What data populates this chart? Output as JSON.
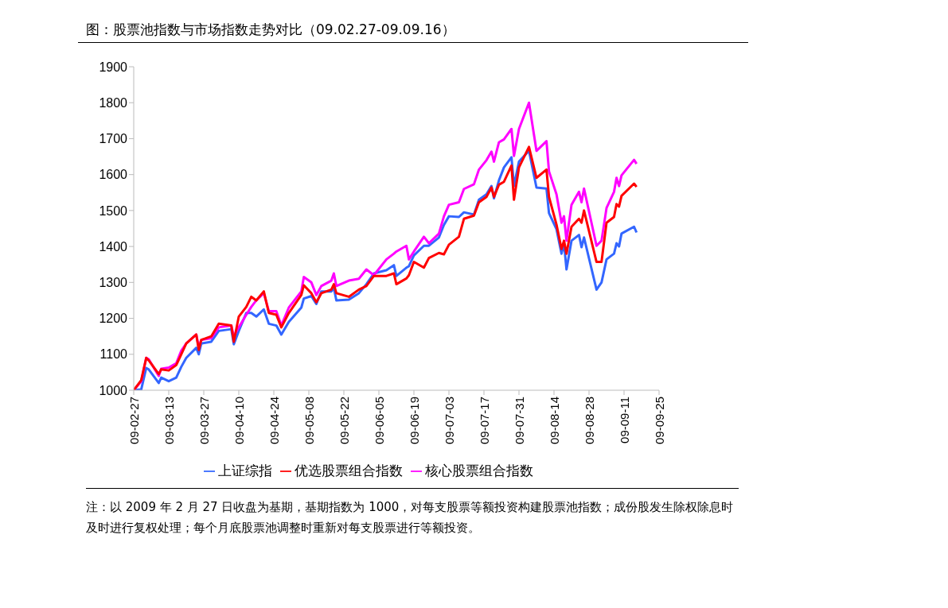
{
  "chart_data": {
    "type": "line",
    "title": "图：股票池指数与市场指数走势对比（09.02.27-09.09.16）",
    "annotations": [
      "注：以 2009 年 2 月 27 日收盘为基期，基期指数为 1000，对每支股票等额投资构建股票池指数；成份股发生除权除息时及时进行复权处理；每个月底股票池调整时重新对每支股票进行等额投资。"
    ],
    "x": [
      "2009-02-27",
      "2009-03-02",
      "2009-03-04",
      "2009-03-05",
      "2009-03-09",
      "2009-03-10",
      "2009-03-13",
      "2009-03-16",
      "2009-03-18",
      "2009-03-20",
      "2009-03-24",
      "2009-03-25",
      "2009-03-26",
      "2009-03-30",
      "2009-04-02",
      "2009-04-07",
      "2009-04-08",
      "2009-04-10",
      "2009-04-13",
      "2009-04-15",
      "2009-04-17",
      "2009-04-20",
      "2009-04-22",
      "2009-04-25",
      "2009-04-27",
      "2009-04-30",
      "2009-05-05",
      "2009-05-06",
      "2009-05-09",
      "2009-05-11",
      "2009-05-13",
      "2009-05-17",
      "2009-05-18",
      "2009-05-19",
      "2009-05-24",
      "2009-05-28",
      "2009-05-31",
      "2009-06-03",
      "2009-06-08",
      "2009-06-11",
      "2009-06-12",
      "2009-06-16",
      "2009-06-17",
      "2009-06-19",
      "2009-06-23",
      "2009-06-25",
      "2009-06-29",
      "2009-07-01",
      "2009-07-03",
      "2009-07-07",
      "2009-07-09",
      "2009-07-13",
      "2009-07-15",
      "2009-07-18",
      "2009-07-20",
      "2009-07-21",
      "2009-07-23",
      "2009-07-25",
      "2009-07-28",
      "2009-07-29",
      "2009-07-31",
      "2009-08-04",
      "2009-08-07",
      "2009-08-11",
      "2009-08-12",
      "2009-08-15",
      "2009-08-17",
      "2009-08-18",
      "2009-08-19",
      "2009-08-21",
      "2009-08-24",
      "2009-08-25",
      "2009-08-26",
      "2009-08-31",
      "2009-09-02",
      "2009-09-04",
      "2009-09-07",
      "2009-09-08",
      "2009-09-09",
      "2009-09-10",
      "2009-09-15",
      "2009-09-16"
    ],
    "series": [
      {
        "name": "优选股票组合指数",
        "color": "#ff0000",
        "values": [
          1000,
          1028,
          1090,
          1083,
          1045,
          1058,
          1055,
          1070,
          1100,
          1130,
          1155,
          1112,
          1140,
          1150,
          1185,
          1180,
          1135,
          1205,
          1232,
          1260,
          1250,
          1275,
          1215,
          1210,
          1175,
          1215,
          1265,
          1292,
          1270,
          1245,
          1270,
          1280,
          1295,
          1270,
          1260,
          1280,
          1290,
          1318,
          1318,
          1325,
          1295,
          1311,
          1320,
          1357,
          1341,
          1368,
          1382,
          1378,
          1405,
          1427,
          1477,
          1486,
          1523,
          1538,
          1564,
          1538,
          1572,
          1580,
          1625,
          1530,
          1620,
          1677,
          1591,
          1614,
          1538,
          1461,
          1393,
          1416,
          1380,
          1455,
          1477,
          1466,
          1500,
          1357,
          1357,
          1466,
          1482,
          1518,
          1511,
          1541,
          1575,
          1566
        ]
      },
      {
        "name": "核心股票组合指数",
        "color": "#ff00ff",
        "values": [
          1000,
          1025,
          1090,
          1086,
          1040,
          1060,
          1063,
          1075,
          1110,
          1130,
          1155,
          1120,
          1140,
          1145,
          1175,
          1180,
          1150,
          1175,
          1210,
          1232,
          1250,
          1270,
          1220,
          1220,
          1180,
          1230,
          1275,
          1315,
          1300,
          1265,
          1290,
          1305,
          1325,
          1290,
          1305,
          1310,
          1336,
          1320,
          1364,
          1380,
          1386,
          1402,
          1364,
          1386,
          1427,
          1409,
          1436,
          1484,
          1516,
          1523,
          1560,
          1573,
          1614,
          1640,
          1664,
          1636,
          1690,
          1698,
          1727,
          1652,
          1727,
          1800,
          1666,
          1693,
          1609,
          1545,
          1466,
          1484,
          1416,
          1516,
          1552,
          1523,
          1561,
          1402,
          1416,
          1507,
          1552,
          1591,
          1568,
          1598,
          1641,
          1630
        ]
      },
      {
        "name": "上证综指",
        "color": "#3366ff",
        "values": [
          1000,
          1002,
          1062,
          1058,
          1020,
          1035,
          1025,
          1035,
          1065,
          1090,
          1118,
          1100,
          1130,
          1135,
          1165,
          1170,
          1128,
          1165,
          1215,
          1215,
          1205,
          1225,
          1185,
          1180,
          1155,
          1190,
          1230,
          1255,
          1262,
          1240,
          1275,
          1275,
          1285,
          1250,
          1252,
          1270,
          1295,
          1325,
          1334,
          1348,
          1318,
          1341,
          1345,
          1375,
          1402,
          1402,
          1425,
          1460,
          1484,
          1482,
          1495,
          1489,
          1530,
          1545,
          1568,
          1534,
          1584,
          1620,
          1648,
          1568,
          1636,
          1666,
          1564,
          1561,
          1493,
          1448,
          1380,
          1409,
          1336,
          1416,
          1432,
          1398,
          1425,
          1280,
          1300,
          1364,
          1380,
          1409,
          1400,
          1436,
          1455,
          1439
        ]
      }
    ],
    "xlim": [
      "2009-02-27",
      "2009-09-25"
    ],
    "xticks": [
      {
        "value": "2009-02-27",
        "label": "09-02-27"
      },
      {
        "value": "2009-03-13",
        "label": "09-03-13"
      },
      {
        "value": "2009-03-27",
        "label": "09-03-27"
      },
      {
        "value": "2009-04-10",
        "label": "09-04-10"
      },
      {
        "value": "2009-04-24",
        "label": "09-04-24"
      },
      {
        "value": "2009-05-08",
        "label": "09-05-08"
      },
      {
        "value": "2009-05-22",
        "label": "09-05-22"
      },
      {
        "value": "2009-06-05",
        "label": "09-06-05"
      },
      {
        "value": "2009-06-19",
        "label": "09-06-19"
      },
      {
        "value": "2009-07-03",
        "label": "09-07-03"
      },
      {
        "value": "2009-07-17",
        "label": "09-07-17"
      },
      {
        "value": "2009-07-31",
        "label": "09-07-31"
      },
      {
        "value": "2009-08-14",
        "label": "09-08-14"
      },
      {
        "value": "2009-08-28",
        "label": "09-08-28"
      },
      {
        "value": "2009-09-11",
        "label": "09-09-11"
      },
      {
        "value": "2009-09-25",
        "label": "09-09-25"
      }
    ],
    "ylim": [
      1000,
      1900
    ],
    "yticks": [
      1000,
      1100,
      1200,
      1300,
      1400,
      1500,
      1600,
      1700,
      1800,
      1900
    ],
    "grid": false,
    "legend": "bottom",
    "marker": "none",
    "line_style": "solid"
  }
}
